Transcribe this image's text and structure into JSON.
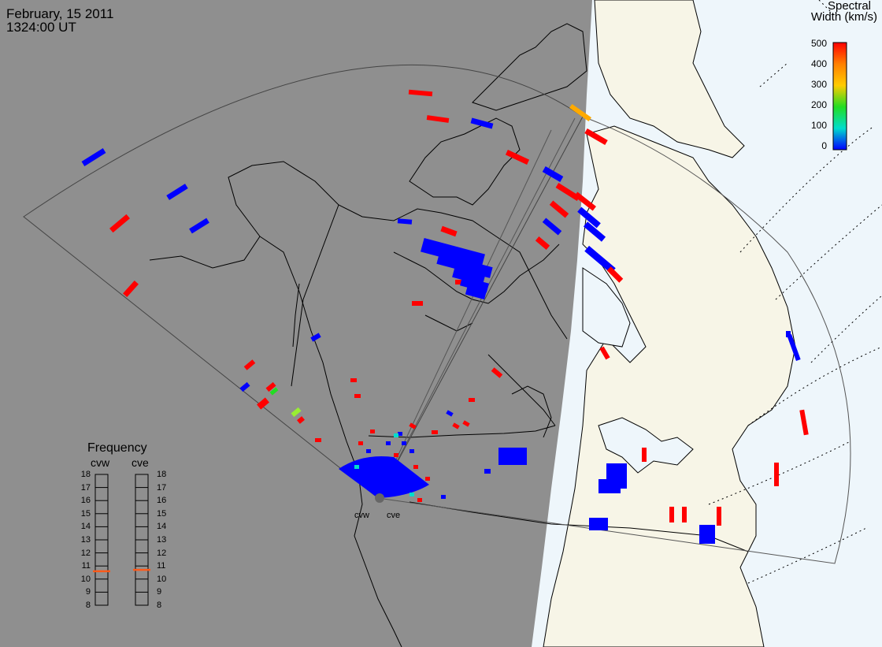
{
  "header": {
    "date": "February, 15 2011",
    "time": "1324:00 UT"
  },
  "colorbar": {
    "title_line1": "Spectral",
    "title_line2": "Width (km/s)",
    "ticks": [
      "500",
      "400",
      "300",
      "200",
      "100",
      "0"
    ],
    "colors": [
      "#ff0000",
      "#ff8000",
      "#ffcc00",
      "#22dd22",
      "#00ddcc",
      "#0000ff"
    ]
  },
  "frequency_panel": {
    "title": "Frequency",
    "columns": [
      "cvw",
      "cve"
    ],
    "ticks": [
      "18",
      "17",
      "16",
      "15",
      "14",
      "13",
      "12",
      "11",
      "10",
      "9",
      "8"
    ],
    "cvw_value_mhz": 10.6,
    "cve_value_mhz": 10.7
  },
  "radars": {
    "west": "cvw",
    "east": "cve"
  },
  "map_colors": {
    "night": "#8f8f8f",
    "day_land": "#f7f5e7",
    "day_ocean": "#eef6fb",
    "scatter_low": "#0000ff",
    "scatter_high": "#ff0000"
  }
}
